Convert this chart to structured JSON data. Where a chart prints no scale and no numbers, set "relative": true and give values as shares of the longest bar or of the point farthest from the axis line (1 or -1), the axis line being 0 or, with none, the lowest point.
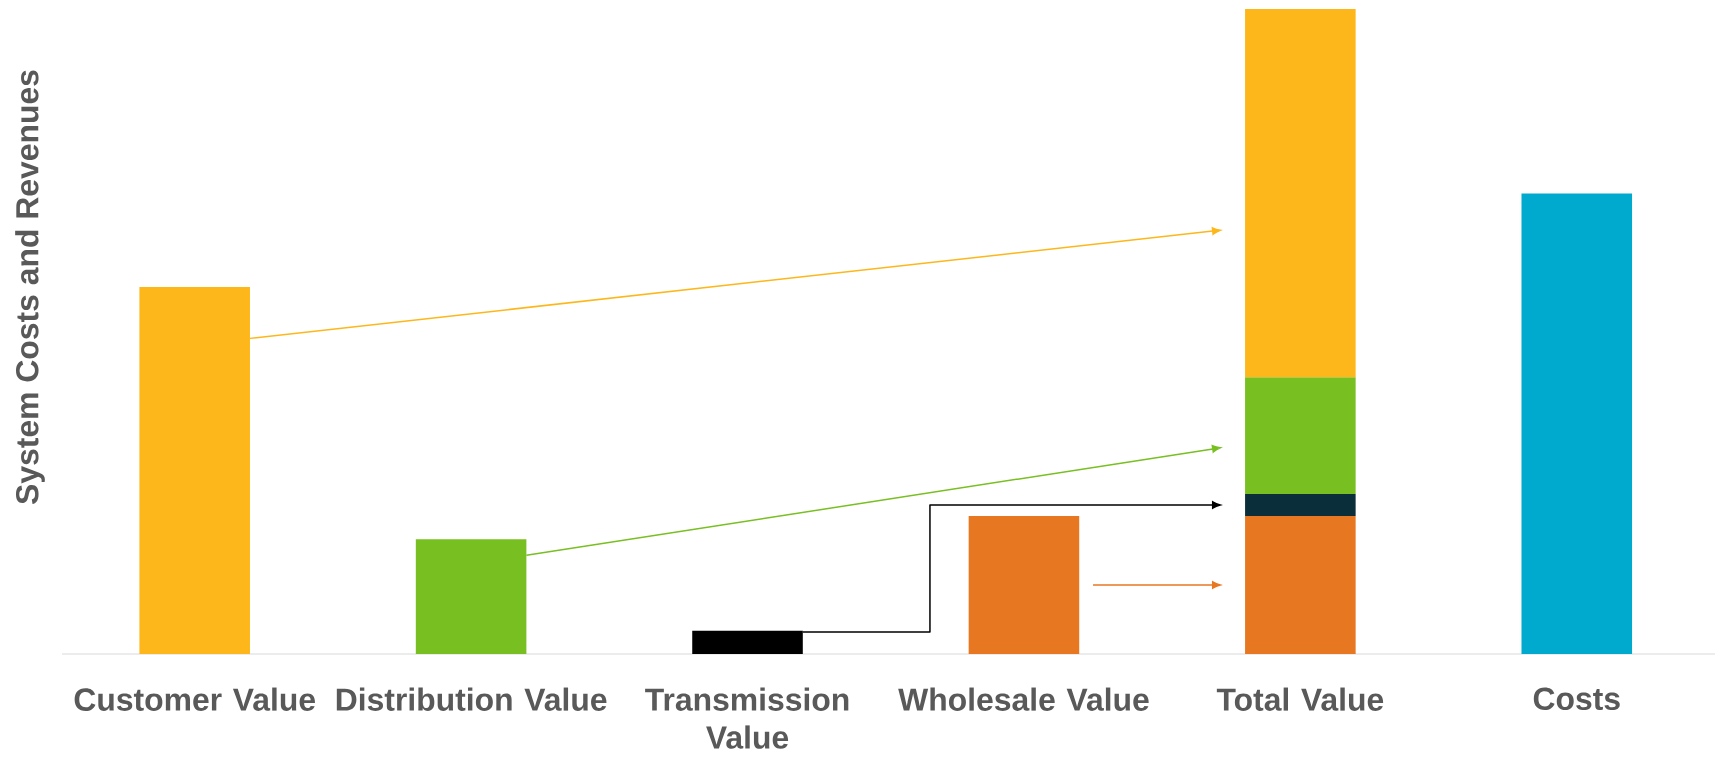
{
  "chart_data": {
    "type": "bar",
    "relative": true,
    "stacked": true,
    "ylabel": "System Costs and Revenues",
    "categories": [
      "Customer Value",
      "Distribution Value",
      "Transmission Value",
      "Wholesale Value",
      "Total Value",
      "Costs"
    ],
    "series": [
      {
        "colors": [
          "#fdb71a",
          "#78bf21",
          "#000000",
          "#e87722",
          "#e87722",
          "#00a9ce"
        ],
        "values": [
          0.569,
          0.178,
          0.036,
          0.214,
          0.214,
          0.714
        ]
      },
      {
        "color": "#0b2e3b",
        "values": [
          null,
          null,
          null,
          null,
          0.034,
          null
        ]
      },
      {
        "color": "#78bf21",
        "values": [
          null,
          null,
          null,
          null,
          0.181,
          null
        ]
      },
      {
        "color": "#fdb71a",
        "values": [
          null,
          null,
          null,
          null,
          0.571,
          null
        ]
      }
    ]
  }
}
